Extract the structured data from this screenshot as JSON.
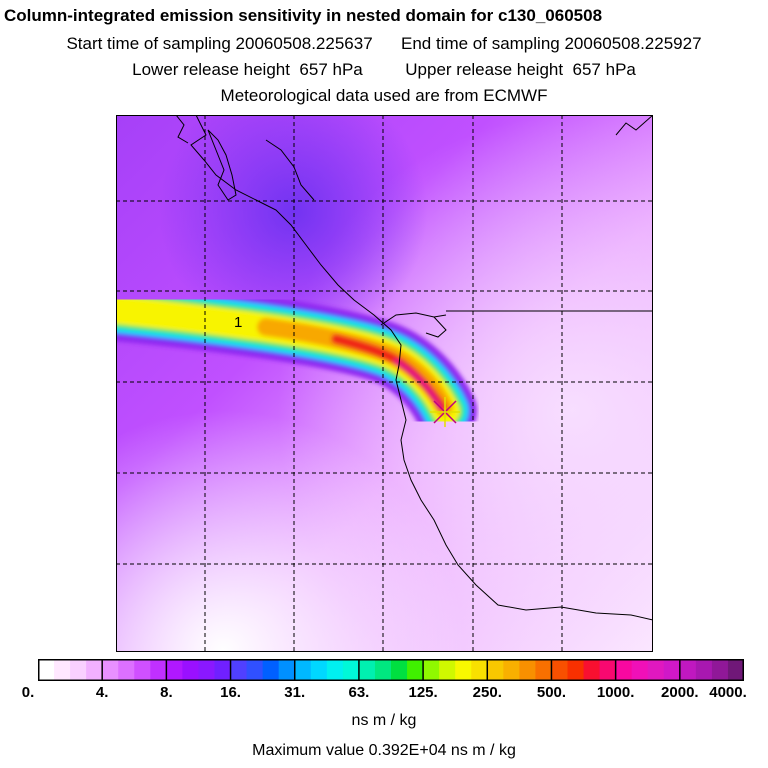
{
  "header": {
    "title": "Column-integrated emission sensitivity in nested domain for c130_060508",
    "line1": "Start time of sampling 20060508.225637      End time of sampling 20060508.225927",
    "line2": "Lower release height  657 hPa         Upper release height  657 hPa",
    "line3": "Meteorological data used are from ECMWF"
  },
  "map": {
    "plume_label": "1",
    "colors": {
      "background_low": "#f7d8ff",
      "purple": "#b040f8",
      "deep_purple": "#8c2cf0",
      "blue": "#5050ff",
      "cyan": "#00e8f8",
      "green": "#40e070",
      "yellow": "#f8f800",
      "orange": "#f8a000",
      "red": "#f01818",
      "coast": "#000000",
      "grid": "#000000",
      "release_marker": "#e0e000"
    }
  },
  "legend": {
    "tick_labels": [
      "0.",
      "4.",
      "8.",
      "16.",
      "31.",
      "63.",
      "125.",
      "250.",
      "500.",
      "1000.",
      "2000.",
      "4000."
    ],
    "colors": [
      "#ffffff",
      "#ffe8ff",
      "#fad0ff",
      "#f2b0ff",
      "#e890ff",
      "#dd70ff",
      "#d050ff",
      "#c030ff",
      "#b018ff",
      "#9a10ff",
      "#8a18ff",
      "#7020ff",
      "#5040ff",
      "#3050ff",
      "#0060ff",
      "#0090ff",
      "#00b8ff",
      "#00d8ff",
      "#00f0f0",
      "#00f8d8",
      "#00f0b0",
      "#00e880",
      "#00e040",
      "#40f000",
      "#90f800",
      "#d0f800",
      "#f8f800",
      "#f8e000",
      "#f8c800",
      "#f8b000",
      "#f89000",
      "#f87000",
      "#f85000",
      "#f83000",
      "#f81030",
      "#f80870",
      "#f808a0",
      "#f010b8",
      "#e018c0",
      "#d018c8",
      "#c018c0",
      "#a818b0",
      "#901898",
      "#701878"
    ],
    "units": "ns m / kg",
    "max_value": "Maximum value  0.392E+04 ns m / kg"
  }
}
